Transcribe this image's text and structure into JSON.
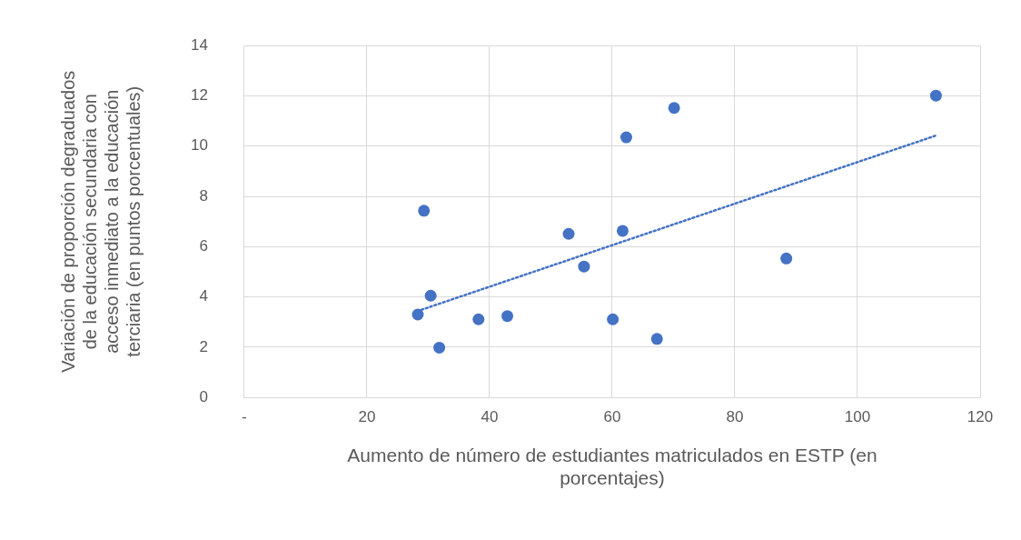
{
  "chart_data": {
    "type": "scatter",
    "xlabel": "Aumento de número de estudiantes matriculados en ESTP (en porcentajes)",
    "ylabel": "Variación de proporción degraduados de la educación secundaria con acceso inmediato a la educación terciaria (en puntos porcentuales)",
    "series": [
      {
        "color": "#4472c4",
        "marker": "circle",
        "x": [
          28.3,
          29.3,
          30.4,
          31.8,
          38.2,
          42.9,
          52.9,
          55.4,
          60.1,
          61.7,
          62.3,
          67.3,
          70.1,
          88.4,
          112.8
        ],
        "values": [
          3.3,
          7.43,
          4.05,
          1.98,
          3.11,
          3.24,
          6.51,
          5.21,
          3.11,
          6.63,
          10.35,
          2.33,
          11.52,
          5.53,
          12.01
        ]
      },
      {
        "type": "line",
        "color": "#4472c4",
        "marker": "none",
        "line_style": "dotted",
        "x": [
          28.9,
          112.9
        ],
        "values": [
          3.49,
          10.43
        ]
      }
    ],
    "xlim": [
      0,
      120
    ],
    "xticks": [
      {
        "value": 0,
        "label": "-"
      },
      20,
      40,
      60,
      80,
      100,
      120
    ],
    "ylim": [
      0,
      14
    ],
    "yticks": [
      0,
      2,
      4,
      6,
      8,
      10,
      12,
      14
    ],
    "grid": true,
    "legend": false
  }
}
